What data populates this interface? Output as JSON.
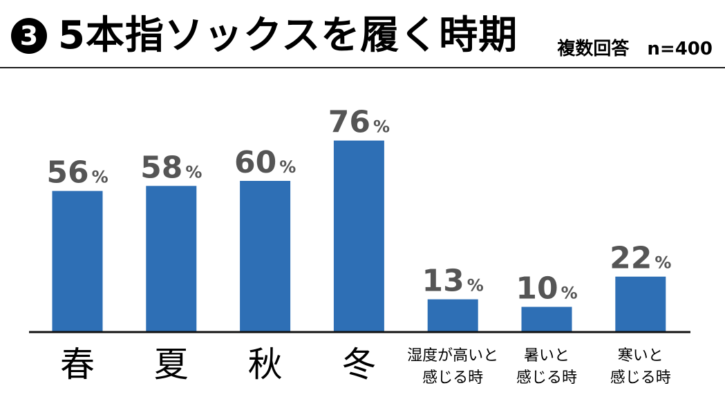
{
  "header": {
    "badge": "3",
    "title": "5本指ソックスを履く時期",
    "note": "複数回答　n=400"
  },
  "chart_data": {
    "type": "bar",
    "categories": [
      "春",
      "夏",
      "秋",
      "冬",
      "湿度が高いと\n感じる時",
      "暑いと\n感じる時",
      "寒いと\n感じる時"
    ],
    "values": [
      56,
      58,
      60,
      76,
      13,
      10,
      22
    ],
    "value_suffix": "%",
    "ylim": [
      0,
      100
    ],
    "grid": false,
    "legend": "none",
    "bar_color": "#2e6fb5"
  }
}
